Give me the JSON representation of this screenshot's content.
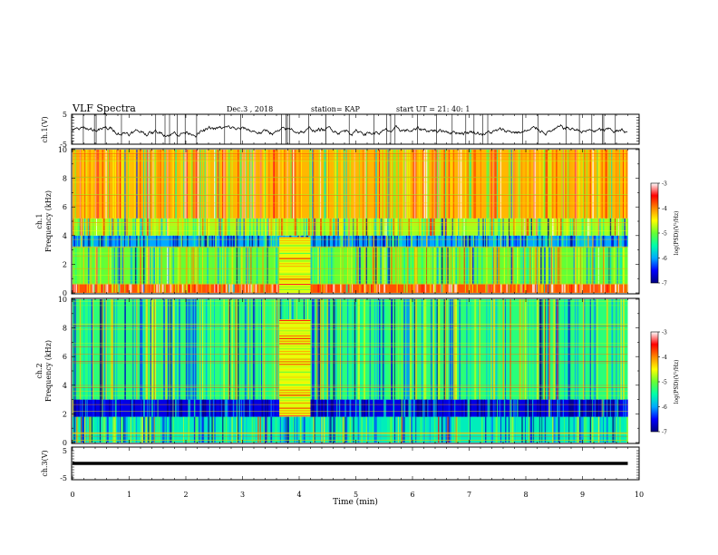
{
  "header": {
    "title": "VLF Spectra",
    "date": "Dec.3  , 2018",
    "station": "station= KAP",
    "start": "start  UT  =   21: 40: 1"
  },
  "chart_data": [
    {
      "type": "line",
      "name": "ch1-voltage",
      "ylabel": "ch.1(V)",
      "ylim": [
        -5,
        5
      ],
      "yticks": [
        "5",
        "-5"
      ],
      "xlim": [
        0,
        10
      ],
      "description_data": "oscillating waveform roughly between -3 and 2 V across 0–9.8 min"
    },
    {
      "type": "heatmap",
      "name": "ch1-spectrogram",
      "ylabel_top": "ch.1",
      "ylabel": "Frequency  (kHz)",
      "ylim": [
        0,
        10
      ],
      "yticks": [
        "0",
        "2",
        "4",
        "6",
        "8",
        "10"
      ],
      "xlim": [
        0,
        9.8
      ],
      "colorbar": {
        "label": "log(PSD)(V²/Hz)",
        "min": -7,
        "max": -3,
        "ticks": [
          "-3",
          "-4",
          "-5",
          "-6",
          "-7"
        ],
        "colors": [
          "#000080",
          "#0000ff",
          "#00aaff",
          "#00ffaa",
          "#66ff33",
          "#ffff00",
          "#ff8800",
          "#ff0000",
          "#ffffff"
        ]
      },
      "bands": [
        {
          "fmin": 0,
          "fmax": 0.6,
          "level": -3.8
        },
        {
          "fmin": 0.6,
          "fmax": 3.2,
          "level": -5.0
        },
        {
          "fmin": 3.2,
          "fmax": 4.0,
          "level": -6.0
        },
        {
          "fmin": 4.0,
          "fmax": 5.2,
          "level": -4.8
        },
        {
          "fmin": 5.2,
          "fmax": 10,
          "level": -4.2
        }
      ],
      "event": {
        "tmin": 3.65,
        "tmax": 4.2,
        "fmin": 0,
        "fmax": 3.9,
        "level": -4.6
      }
    },
    {
      "type": "heatmap",
      "name": "ch2-spectrogram",
      "ylabel_top": "ch.2",
      "ylabel": "Frequency  (kHz)",
      "ylim": [
        0,
        10
      ],
      "yticks": [
        "0",
        "2",
        "4",
        "6",
        "8",
        "10"
      ],
      "xlim": [
        0,
        9.8
      ],
      "colorbar": {
        "label": "log(PSD)(V²/Hz)",
        "min": -7,
        "max": -3,
        "ticks": [
          "-3",
          "-4",
          "-5",
          "-6",
          "-7"
        ],
        "colors": [
          "#000080",
          "#0000ff",
          "#00aaff",
          "#00ffaa",
          "#66ff33",
          "#ffff00",
          "#ff8800",
          "#ff0000",
          "#ffffff"
        ]
      },
      "bands": [
        {
          "fmin": 0,
          "fmax": 1.8,
          "level": -5.6
        },
        {
          "fmin": 1.8,
          "fmax": 3.0,
          "level": -6.6
        },
        {
          "fmin": 3.0,
          "fmax": 10,
          "level": -5.3
        }
      ],
      "event": {
        "tmin": 3.65,
        "tmax": 4.2,
        "fmin": 1.8,
        "fmax": 8.6,
        "level": -4.6
      }
    },
    {
      "type": "line",
      "name": "ch3-voltage",
      "ylabel": "ch.3(V)",
      "ylim": [
        -5,
        5
      ],
      "yticks": [
        "5",
        "-5"
      ],
      "xlim": [
        0,
        10
      ],
      "y_constant": 0
    }
  ],
  "xaxis": {
    "label": "Time  (min)",
    "ticks": [
      "0",
      "1",
      "2",
      "3",
      "4",
      "5",
      "6",
      "7",
      "8",
      "9",
      "10"
    ]
  }
}
